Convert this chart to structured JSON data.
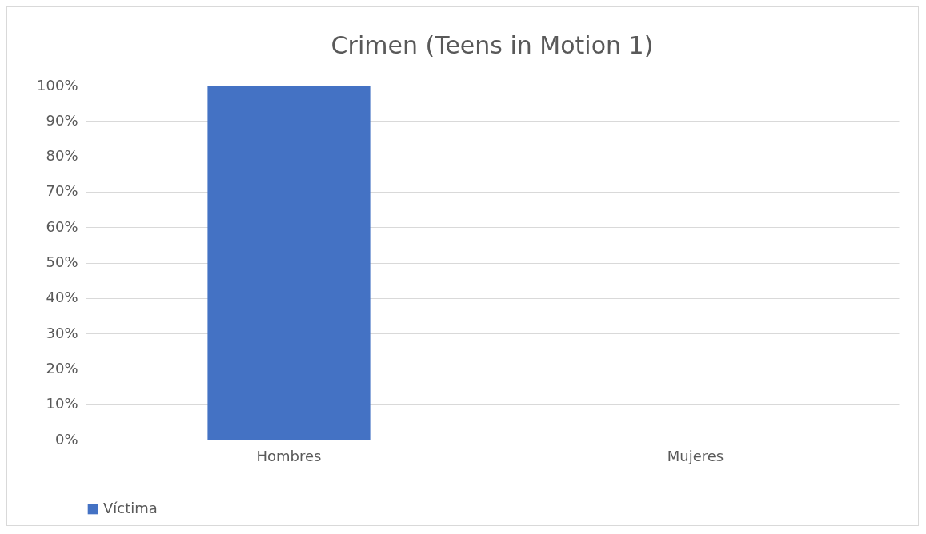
{
  "chart_data": {
    "type": "bar",
    "title": "Crimen (Teens in Motion 1)",
    "categories": [
      "Hombres",
      "Mujeres"
    ],
    "series": [
      {
        "name": "Víctima",
        "color": "#4472c4",
        "values": [
          100,
          0
        ]
      }
    ],
    "ylim": [
      0,
      100
    ],
    "yticks": [
      {
        "value": 0,
        "label": "0%"
      },
      {
        "value": 10,
        "label": "10%"
      },
      {
        "value": 20,
        "label": "20%"
      },
      {
        "value": 30,
        "label": "30%"
      },
      {
        "value": 40,
        "label": "40%"
      },
      {
        "value": 50,
        "label": "50%"
      },
      {
        "value": 60,
        "label": "60%"
      },
      {
        "value": 70,
        "label": "70%"
      },
      {
        "value": 80,
        "label": "80%"
      },
      {
        "value": 90,
        "label": "90%"
      },
      {
        "value": 100,
        "label": "100%"
      }
    ],
    "grid": "y",
    "legend": "bottom"
  }
}
